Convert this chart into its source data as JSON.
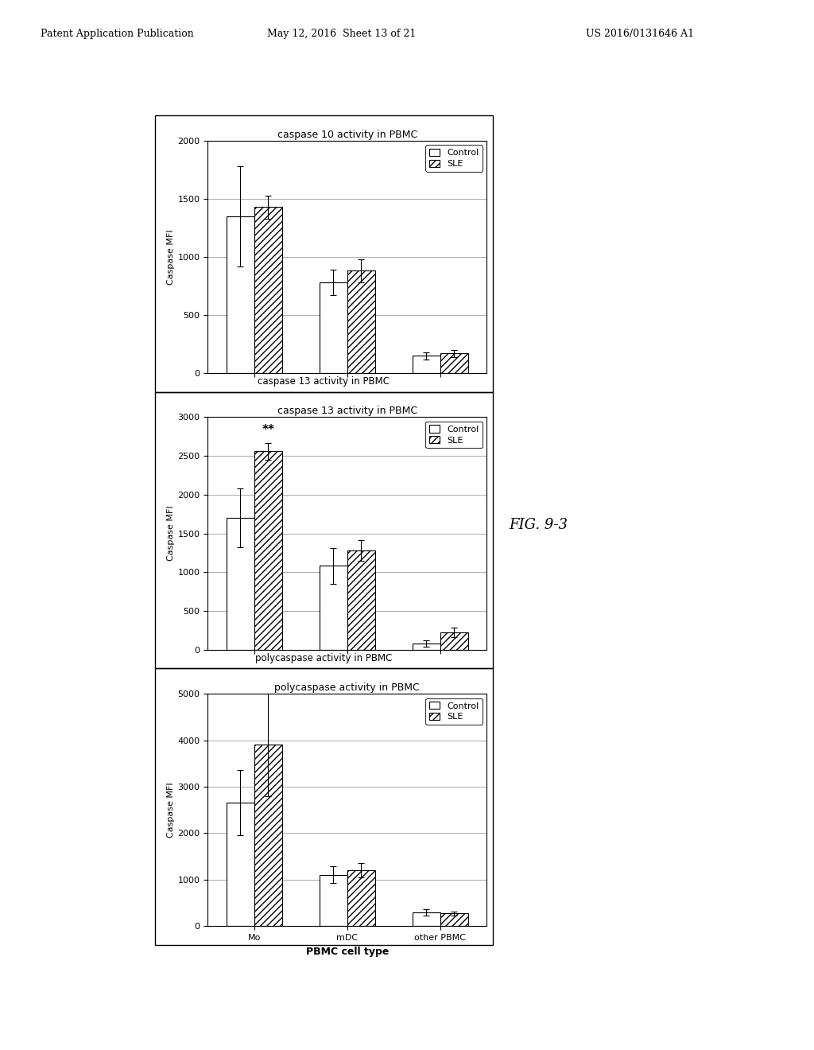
{
  "header_left": "Patent Application Publication",
  "header_center": "May 12, 2016  Sheet 13 of 21",
  "header_right": "US 2016/0131646 A1",
  "fig_label": "FIG. 9-3",
  "subplots": [
    {
      "title": "caspase 10 activity in PBMC",
      "bottom_label": "caspase 13 activity in PBMC",
      "ylabel": "Caspase MFI",
      "ylim": [
        0,
        2000
      ],
      "yticks": [
        0,
        500,
        1000,
        1500,
        2000
      ],
      "categories": [
        "Mo",
        "mDC",
        "other PBMC"
      ],
      "control_values": [
        1350,
        780,
        150
      ],
      "sle_values": [
        1430,
        880,
        170
      ],
      "control_errors": [
        430,
        110,
        30
      ],
      "sle_errors": [
        100,
        100,
        30
      ],
      "annotation": null
    },
    {
      "title": "caspase 13 activity in PBMC",
      "bottom_label": "polycaspase activity in PBMC",
      "ylabel": "Caspase MFI",
      "ylim": [
        0,
        3000
      ],
      "yticks": [
        0,
        500,
        1000,
        1500,
        2000,
        2500,
        3000
      ],
      "categories": [
        "Mo",
        "mDC",
        "other PBMC"
      ],
      "control_values": [
        1700,
        1080,
        80
      ],
      "sle_values": [
        2560,
        1280,
        220
      ],
      "control_errors": [
        380,
        230,
        40
      ],
      "sle_errors": [
        110,
        130,
        60
      ],
      "annotation": "**"
    },
    {
      "title": "polycaspase activity in PBMC",
      "bottom_label": "PBMC cell type",
      "ylabel": "Caspase MFI",
      "ylim": [
        0,
        5000
      ],
      "yticks": [
        0,
        1000,
        2000,
        3000,
        4000,
        5000
      ],
      "categories": [
        "Mo",
        "mDC",
        "other PBMC"
      ],
      "control_values": [
        2650,
        1100,
        300
      ],
      "sle_values": [
        3900,
        1200,
        270
      ],
      "control_errors": [
        700,
        180,
        70
      ],
      "sle_errors": [
        1100,
        160,
        50
      ],
      "annotation": null
    }
  ],
  "bar_width": 0.3,
  "control_color": "white",
  "sle_hatch": "////",
  "control_edgecolor": "black",
  "sle_edgecolor": "black",
  "sle_facecolor": "white",
  "legend_control_label": "Control",
  "legend_sle_label": "SLE",
  "background_color": "white",
  "title_fontsize": 9,
  "axis_fontsize": 8,
  "tick_fontsize": 8,
  "legend_fontsize": 8,
  "header_fontsize": 9
}
